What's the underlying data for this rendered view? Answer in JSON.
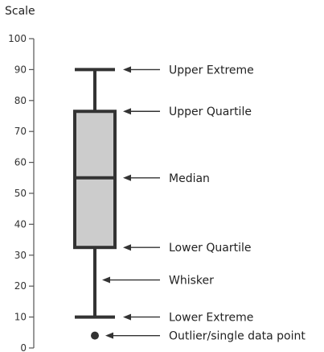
{
  "chart_data": {
    "type": "box",
    "title": "Scale",
    "ylim": [
      0,
      100
    ],
    "yticks": [
      0,
      10,
      20,
      30,
      40,
      50,
      60,
      70,
      80,
      90,
      100
    ],
    "grid": false,
    "box": {
      "lower_extreme": 10,
      "lower_quartile": 32.5,
      "median": 55,
      "upper_quartile": 76.5,
      "upper_extreme": 90,
      "outliers": [
        4
      ]
    },
    "annotations": [
      {
        "label": "Upper Extreme",
        "y": 90
      },
      {
        "label": "Upper Quartile",
        "y": 76.5
      },
      {
        "label": "Median",
        "y": 55
      },
      {
        "label": "Lower Quartile",
        "y": 32.5
      },
      {
        "label": "Whisker",
        "y": 22
      },
      {
        "label": "Lower Extreme",
        "y": 10
      },
      {
        "label": "Outlier/single data point",
        "y": 4
      }
    ],
    "colors": {
      "box_fill": "#cccccc",
      "stroke": "#333333",
      "axis": "#555555",
      "text": "#222222"
    }
  }
}
